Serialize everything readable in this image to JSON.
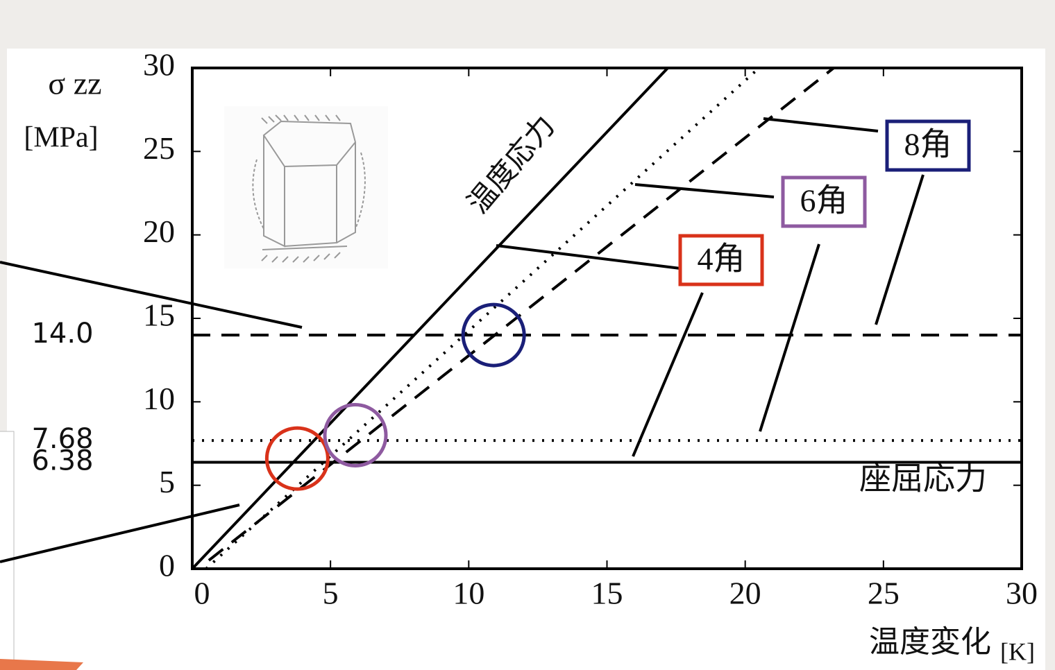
{
  "chart_data": {
    "type": "line",
    "xlabel": "温度変化",
    "xunit": "[K]",
    "ylabel": "σ zz",
    "yunit": "[MPa]",
    "xlim": [
      0,
      30
    ],
    "ylim": [
      0,
      30
    ],
    "xticks": [
      0,
      5,
      10,
      15,
      20,
      25,
      30
    ],
    "yticks": [
      0,
      5,
      10,
      15,
      20,
      25,
      30
    ],
    "series": [
      {
        "name": "温度応力",
        "color": "#000000",
        "style": "solid",
        "x": [
          0,
          17.2
        ],
        "values": [
          0,
          30
        ]
      },
      {
        "color": "#000000",
        "style": "dotted",
        "x": [
          0.5,
          20.5
        ],
        "values": [
          0,
          30
        ]
      },
      {
        "color": "#000000",
        "style": "dashed",
        "x": [
          0.6,
          23.2
        ],
        "values": [
          0.5,
          30
        ]
      }
    ],
    "hlines": [
      {
        "value": {
          "value": 14.0,
          "label": "14.0"
        },
        "style": "dashed"
      },
      {
        "value": 7.68,
        "style": "dotted"
      },
      {
        "value": 6.38,
        "style": "solid",
        "name": "座屈応力"
      }
    ],
    "highlights": [
      {
        "x": 3.8,
        "y": 6.6,
        "color": "#d9321a"
      },
      {
        "x": 5.9,
        "y": 8.0,
        "color": "#8e5aa0"
      },
      {
        "x": 10.9,
        "y": 14.0,
        "color": "#1a1f78"
      }
    ],
    "annotations": [
      {
        "text": "4角",
        "color": "#d9321a"
      },
      {
        "text": "6角",
        "color": "#8e5aa0"
      },
      {
        "text": "8角",
        "color": "#1a1f78"
      }
    ]
  }
}
